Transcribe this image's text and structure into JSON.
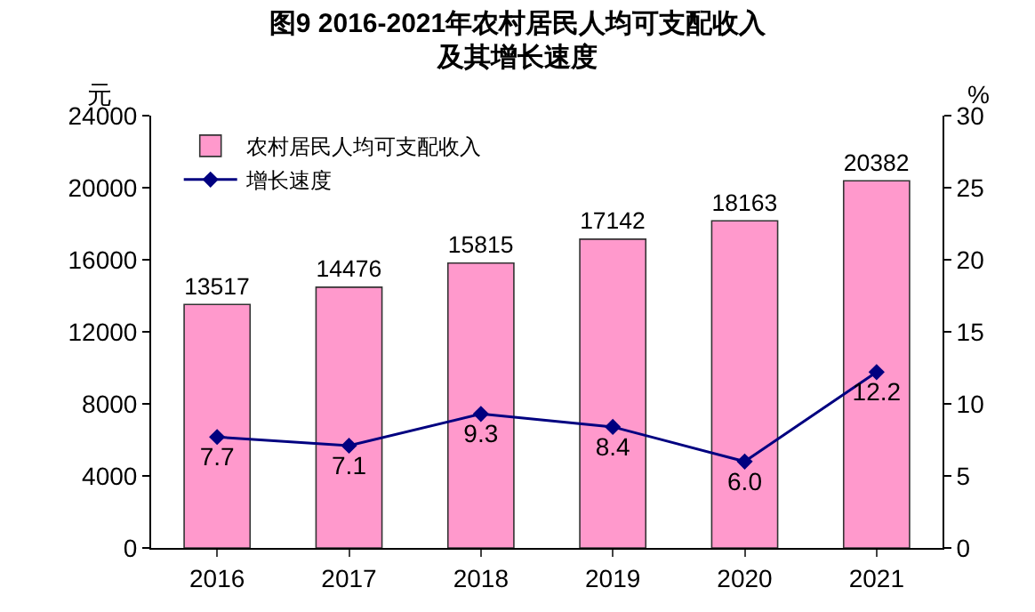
{
  "chart_data": {
    "type": "bar",
    "title": "图9 2016-2021年农村居民人均可支配收入及其增长速度",
    "categories": [
      "2016",
      "2017",
      "2018",
      "2019",
      "2020",
      "2021"
    ],
    "ylabel": "元",
    "y2label": "%",
    "series": [
      {
        "name": "农村居民人均可支配收入",
        "color": "#ff99cc",
        "values": [
          13517,
          14476,
          15815,
          17142,
          18163,
          20382
        ]
      },
      {
        "name": "增长速度",
        "type": "line",
        "axis": "y2",
        "color": "#000080",
        "marker": "diamond",
        "values": [
          7.7,
          7.1,
          9.3,
          8.4,
          6.0,
          12.2
        ],
        "value_labels": [
          "7.7",
          "7.1",
          "9.3",
          "8.4",
          "6.0",
          "12.2"
        ]
      }
    ],
    "ylim": [
      0,
      24000
    ],
    "yticks": [
      0,
      4000,
      8000,
      12000,
      16000,
      20000,
      24000
    ],
    "y2lim": [
      0,
      30
    ],
    "y2ticks": [
      0,
      5,
      10,
      15,
      20,
      25,
      30
    ],
    "data_labels": true,
    "grid": false,
    "legend": "top left"
  }
}
